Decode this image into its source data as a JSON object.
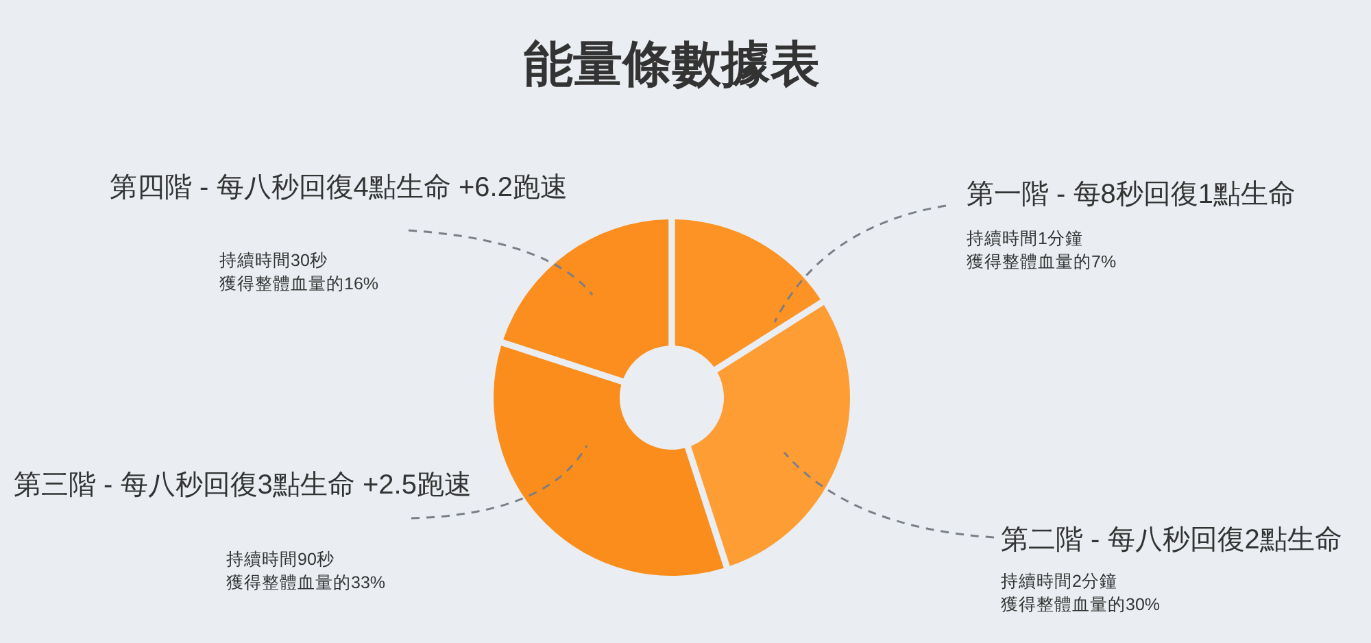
{
  "chart_data": {
    "type": "donut",
    "title": "能量條數據表",
    "categories": [
      "第一階 - 每8秒回復1點生命",
      "第二階 - 每八秒回復2點生命",
      "第三階 - 每八秒回復3點生命  +2.5跑速",
      "第四階 - 每八秒回復4點生命  +6.2跑速"
    ],
    "values": [
      16,
      29,
      35,
      20
    ],
    "colors": [
      "#fc9324",
      "#fd9d34",
      "#fb8d1c",
      "#fb8e1e"
    ],
    "annotations": [
      "持續時間1分鐘",
      "獲得整體血量的7%",
      "持續時間2分鐘",
      "獲得整體血量的30%",
      "持續時間90秒",
      "獲得整體血量的33%",
      "持續時間30秒",
      "獲得整體血量的16%"
    ]
  }
}
